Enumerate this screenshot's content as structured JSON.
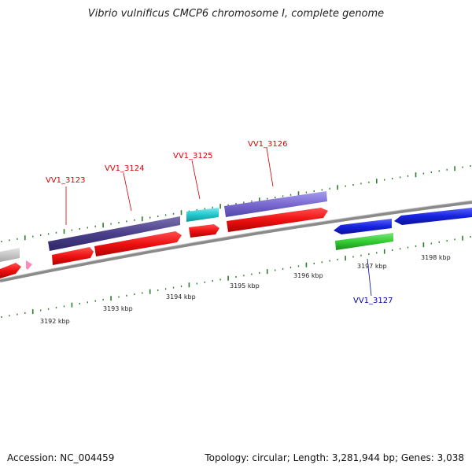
{
  "title": "Vibrio vulnificus CMCP6 chromosome I, complete genome",
  "footer": {
    "accession": "Accession: NC_004459",
    "summary": "Topology: circular; Length: 3,281,944 bp; Genes: 3,038"
  },
  "kbp_labels": [
    "3192 kbp",
    "3193 kbp",
    "3194 kbp",
    "3195 kbp",
    "3196 kbp",
    "3197 kbp",
    "3198 kbp"
  ],
  "gene_labels": [
    "VV1_3123",
    "VV1_3124",
    "VV1_3125",
    "VV1_3126",
    "VV1_3127"
  ],
  "colors": {
    "backbone": "#8a8a8a",
    "tick": "#2a7d2a",
    "gene_red": "#ee1111",
    "gene_navy": "#4a3f8a",
    "gene_cyan": "#22c8cc",
    "gene_purple": "#7a6ad0",
    "gene_blue": "#1622dd",
    "gene_green": "#33cc33",
    "gene_gray": "#c8c8c8",
    "gene_pink": "#ff88bb",
    "label_red": "#dd0000",
    "label_blue": "#0000aa"
  }
}
